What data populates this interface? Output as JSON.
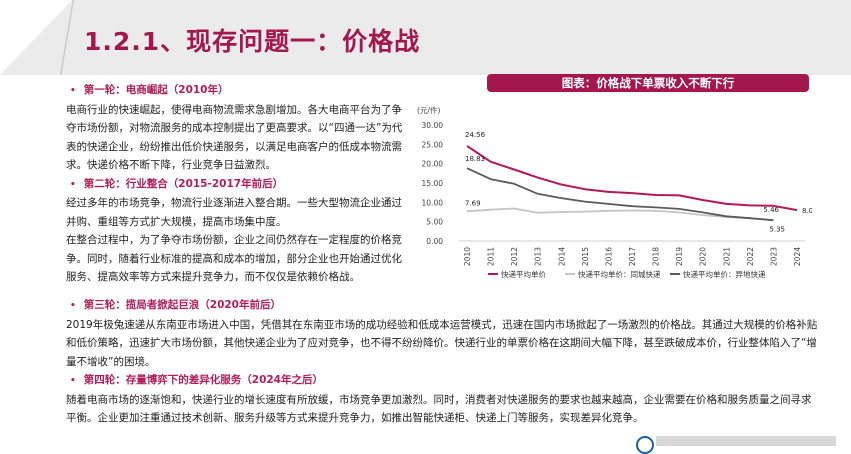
{
  "page": {
    "title": "1.2.1、现存问题一：价格战"
  },
  "left_text": {
    "h1": "第一轮：电商崛起（2010年）",
    "p1": "电商行业的快速崛起，使得电商物流需求急剧增加。各大电商平台为了争夺市场份额，对物流服务的成本控制提出了更高要求。以“四通一达”为代表的快递企业，纷纷推出低价快递服务，以满足电商客户的低成本物流需求。快递价格不断下降，行业竞争日益激烈。",
    "h2": "第二轮：行业整合（2015-2017年前后）",
    "p2": "经过多年的市场竞争，物流行业逐渐进入整合期。一些大型物流企业通过并购、重组等方式扩大规模，提高市场集中度。",
    "p3": "在整合过程中，为了争夺市场份额，企业之间仍然存在一定程度的价格竞争。同时，随着行业标准的提高和成本的增加，部分企业也开始通过优化服务、提高效率等方式来提升竞争力，而不仅仅是依赖价格战。"
  },
  "bottom_text": {
    "h3": "第三轮：揽局者掀起巨浪（2020年前后）",
    "p4": "2019年极兔速递从东南亚市场进入中国，凭借其在东南亚市场的成功经验和低成本运营模式，迅速在国内市场掀起了一场激烈的价格战。其通过大规模的价格补贴和低价策略，迅速扩大市场份额，其他快递企业为了应对竞争，也不得不纷纷降价。快递行业的单票价格在这期间大幅下降，甚至跌破成本价，行业整体陷入了“增量不增收”的困境。",
    "h4": "第四轮：存量博弈下的差异化服务（2024年之后）",
    "p5": "随着电商市场的逐渐饱和，快递行业的增长速度有所放缓，市场竞争更加激烈。同时，消费者对快递服务的要求也越来越高，企业需要在价格和服务质量之间寻求平衡。企业更加注重通过技术创新、服务升级等方式来提升竞争力，如推出智能快递柜、快递上门等服务，实现差异化竞争。"
  },
  "chart_banner": "图表：价格战下单票收入不断下行",
  "chart_data": {
    "type": "line",
    "unit_label": "(元/件)",
    "x": [
      "2010",
      "2011",
      "2012",
      "2013",
      "2014",
      "2015",
      "2016",
      "2017",
      "2018",
      "2019",
      "2020",
      "2021",
      "2022",
      "2023",
      "2024"
    ],
    "ylim": [
      0,
      30
    ],
    "y_ticks": [
      "0.00",
      "5.00",
      "10.00",
      "15.00",
      "20.00",
      "25.00",
      "30.00"
    ],
    "series": [
      {
        "name": "快递平均单价",
        "color": "#b3185c",
        "values": [
          24.56,
          20.5,
          18.5,
          16.4,
          14.6,
          13.4,
          12.7,
          12.4,
          11.9,
          11.8,
          10.6,
          9.6,
          9.2,
          9.1,
          8.0
        ]
      },
      {
        "name": "快递平均单价：同城快递",
        "color": "#c4c4c4",
        "values": [
          7.69,
          8.1,
          8.4,
          7.3,
          7.5,
          7.6,
          7.8,
          7.9,
          7.8,
          7.4,
          6.7,
          6.2,
          5.9,
          5.46,
          null
        ]
      },
      {
        "name": "快递平均单价：异地快递",
        "color": "#5a5a5a",
        "values": [
          18.83,
          16.0,
          14.8,
          12.2,
          11.1,
          10.2,
          9.6,
          9.0,
          8.7,
          8.3,
          7.4,
          6.4,
          5.9,
          5.35,
          null
        ]
      }
    ],
    "data_labels": [
      {
        "series": 0,
        "index": 0,
        "text": "24.56"
      },
      {
        "series": 2,
        "index": 0,
        "text": "18.83"
      },
      {
        "series": 1,
        "index": 0,
        "text": "7.69"
      },
      {
        "series": 1,
        "index": 13,
        "text": "5.46"
      },
      {
        "series": 2,
        "index": 13,
        "text": "5.35"
      },
      {
        "series": 0,
        "index": 14,
        "text": "8.00"
      }
    ]
  }
}
